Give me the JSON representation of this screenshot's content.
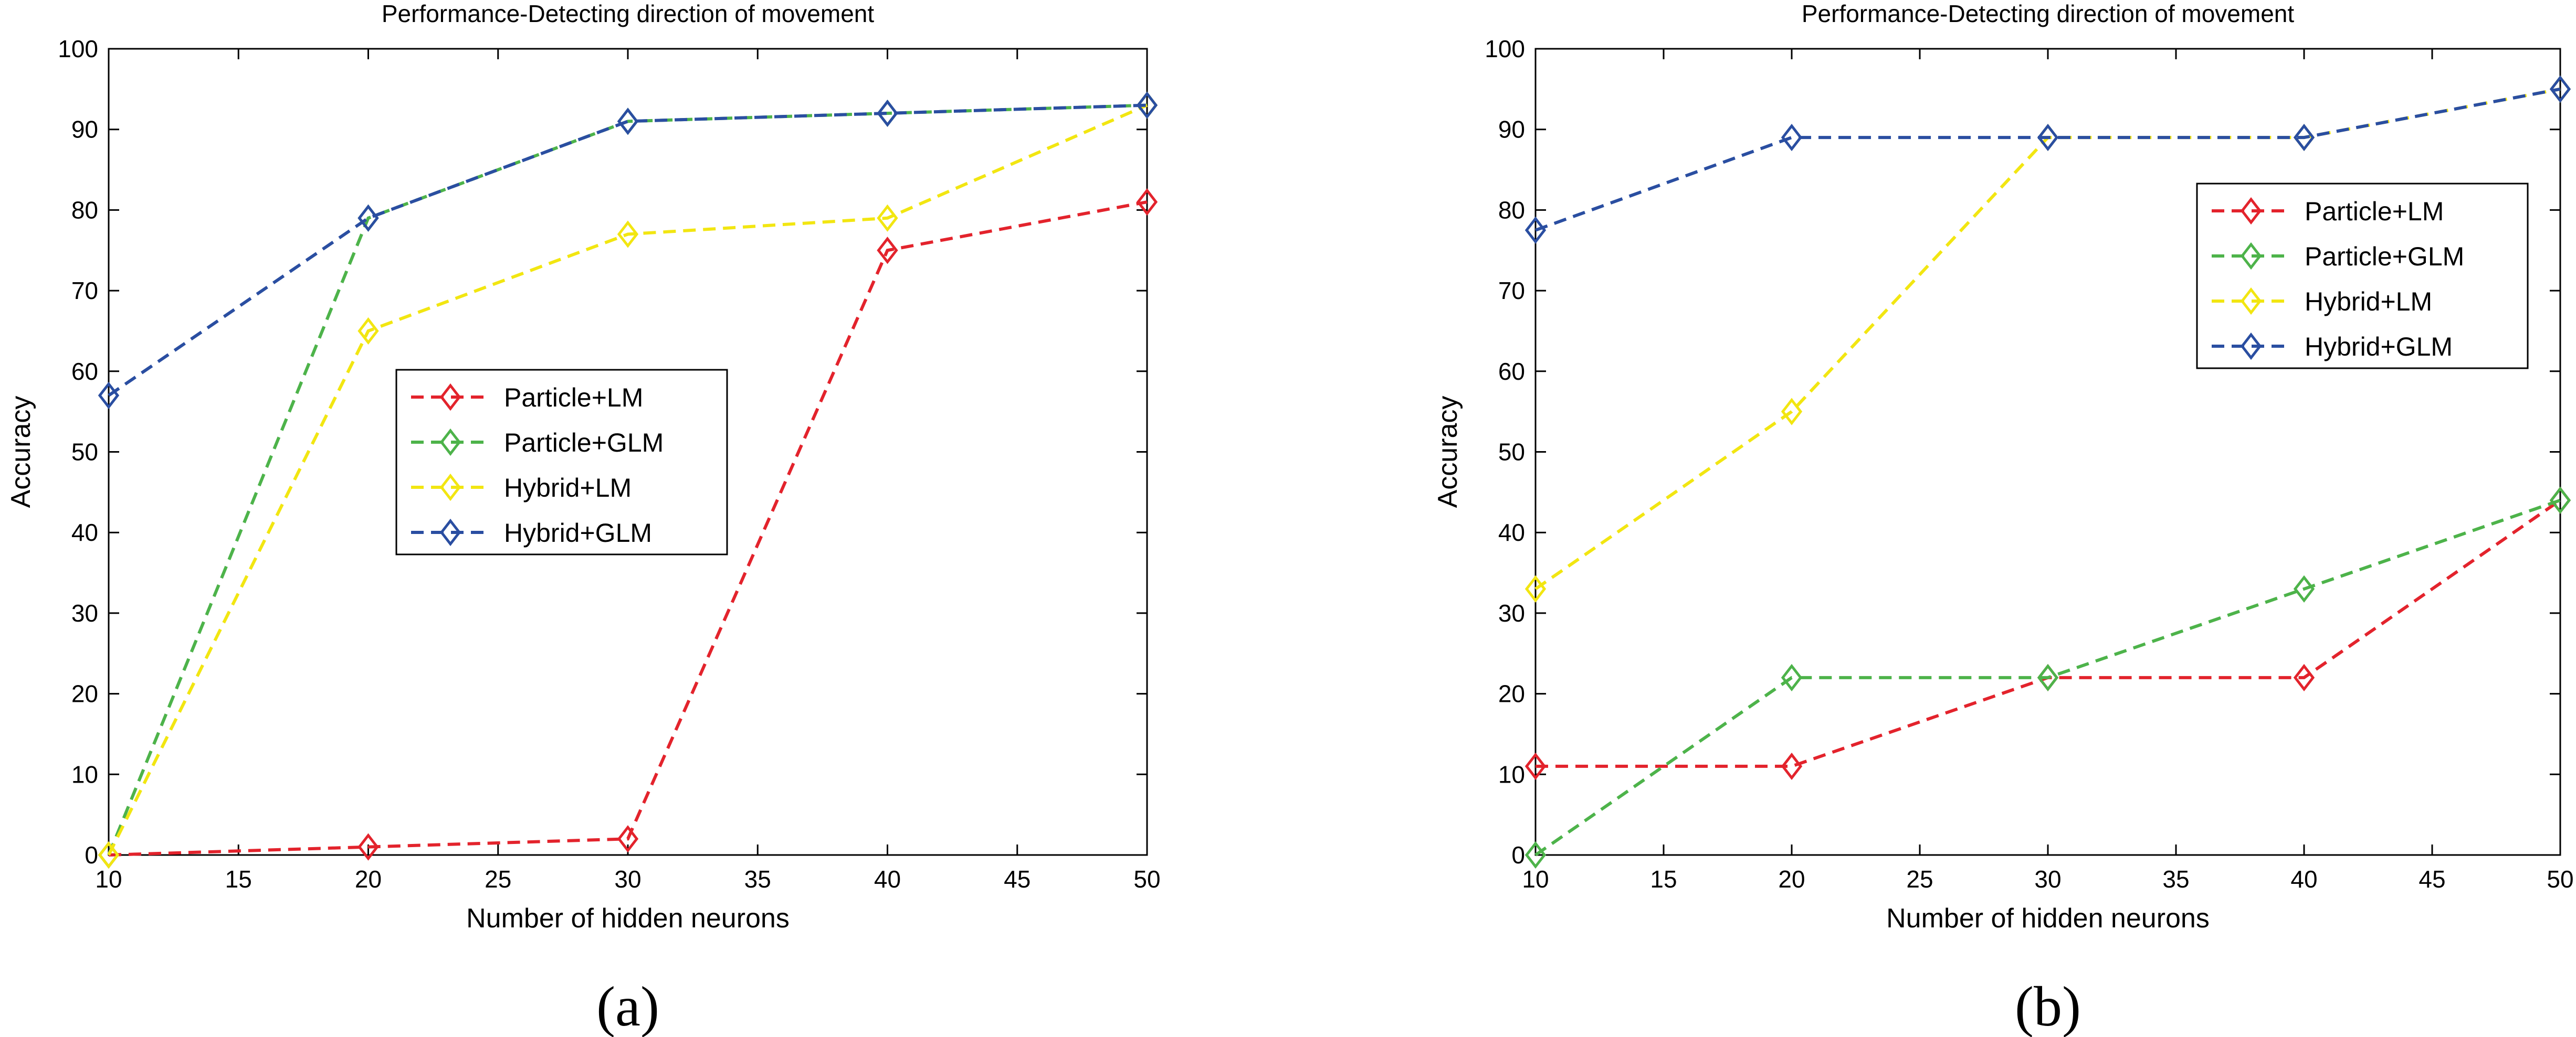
{
  "chart_data": [
    {
      "type": "line",
      "title": "Performance-Detecting direction of movement",
      "xlabel": "Number of hidden neurons",
      "ylabel": "Accuracy",
      "caption": "(a)",
      "x": [
        10,
        20,
        30,
        40,
        50
      ],
      "xlim": [
        10,
        50
      ],
      "ylim": [
        0,
        100
      ],
      "xticks": [
        10,
        15,
        20,
        25,
        30,
        35,
        40,
        45,
        50
      ],
      "yticks": [
        0,
        10,
        20,
        30,
        40,
        50,
        60,
        70,
        80,
        90,
        100
      ],
      "grid": false,
      "legend_position": "center-right",
      "series": [
        {
          "name": "Particle+LM",
          "color": "#e3232c",
          "values": [
            0,
            1,
            2,
            75,
            81
          ]
        },
        {
          "name": "Particle+GLM",
          "color": "#4db34a",
          "values": [
            0,
            79,
            91,
            92,
            93
          ]
        },
        {
          "name": "Hybrid+LM",
          "color": "#f2e611",
          "values": [
            0,
            65,
            77,
            79,
            93
          ]
        },
        {
          "name": "Hybrid+GLM",
          "color": "#2a4ea1",
          "values": [
            57,
            79,
            91,
            92,
            93
          ]
        }
      ]
    },
    {
      "type": "line",
      "title": "Performance-Detecting direction of movement",
      "xlabel": "Number of hidden neurons",
      "ylabel": "Accuracy",
      "caption": "(b)",
      "x": [
        10,
        20,
        30,
        40,
        50
      ],
      "xlim": [
        10,
        50
      ],
      "ylim": [
        0,
        100
      ],
      "xticks": [
        10,
        15,
        20,
        25,
        30,
        35,
        40,
        45,
        50
      ],
      "yticks": [
        0,
        10,
        20,
        30,
        40,
        50,
        60,
        70,
        80,
        90,
        100
      ],
      "grid": false,
      "legend_position": "top-right",
      "series": [
        {
          "name": "Particle+LM",
          "color": "#e3232c",
          "values": [
            11,
            11,
            22,
            22,
            44
          ]
        },
        {
          "name": "Particle+GLM",
          "color": "#4db34a",
          "values": [
            0,
            22,
            22,
            33,
            44
          ]
        },
        {
          "name": "Hybrid+LM",
          "color": "#f2e611",
          "values": [
            33,
            55,
            89,
            89,
            95
          ]
        },
        {
          "name": "Hybrid+GLM",
          "color": "#2a4ea1",
          "values": [
            77.5,
            89,
            89,
            89,
            95
          ]
        }
      ]
    }
  ]
}
